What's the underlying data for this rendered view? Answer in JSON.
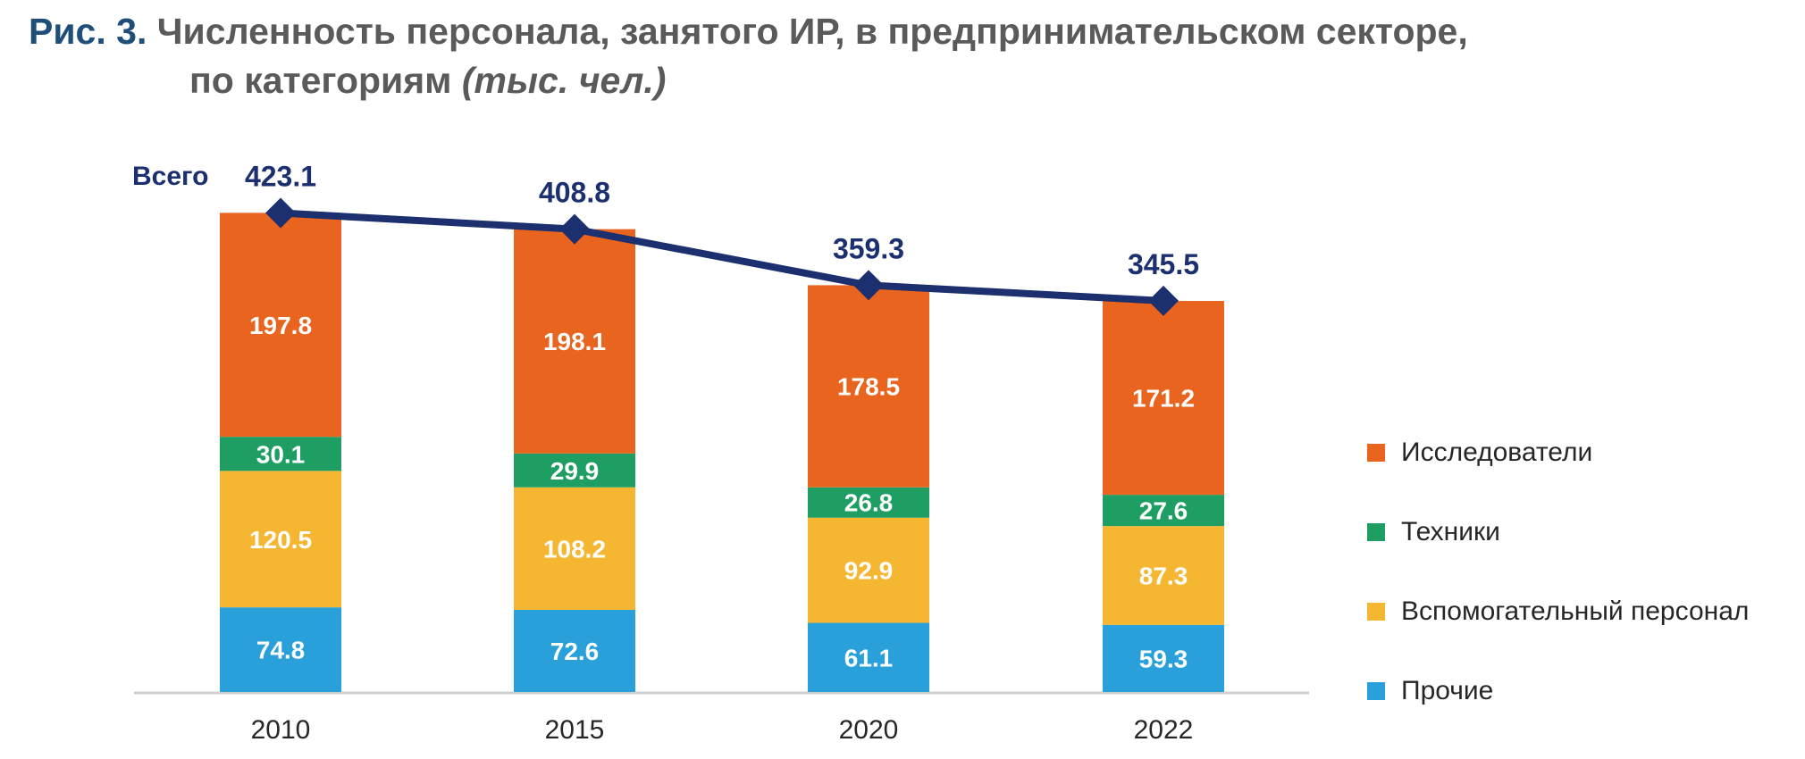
{
  "title": {
    "figure_label": "Рис. 3.",
    "line1": "Численность персонала, занятого ИР, в предпринимательском секторе,",
    "line2": "по категориям",
    "unit": "(тыс. чел.)"
  },
  "chart_data": {
    "type": "bar",
    "stacked": true,
    "categories": [
      "2010",
      "2015",
      "2020",
      "2022"
    ],
    "series": [
      {
        "name": "Прочие",
        "values": [
          74.8,
          72.6,
          61.1,
          59.3
        ],
        "color": "#29a0da"
      },
      {
        "name": "Вспомогательный персонал",
        "values": [
          120.5,
          108.2,
          92.9,
          87.3
        ],
        "color": "#f5b731"
      },
      {
        "name": "Техники",
        "values": [
          30.1,
          29.9,
          26.8,
          27.6
        ],
        "color": "#1f9e63"
      },
      {
        "name": "Исследователи",
        "values": [
          197.8,
          198.1,
          178.5,
          171.2
        ],
        "color": "#e8641f"
      }
    ],
    "total": {
      "name": "Всего",
      "values": [
        423.1,
        408.8,
        359.3,
        345.5
      ],
      "color": "#1c2f6e"
    },
    "legend_position": "right",
    "grid": false,
    "ylim": [
      0,
      450
    ]
  }
}
